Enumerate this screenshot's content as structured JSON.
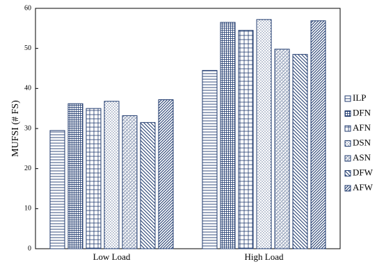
{
  "chart_data": {
    "type": "bar",
    "title": "",
    "xlabel": "",
    "ylabel": "MUFSI (# FS)",
    "ylim": [
      0,
      60
    ],
    "yticks": [
      0,
      10,
      20,
      30,
      40,
      50,
      60
    ],
    "grid": false,
    "legend_position": "right",
    "categories": [
      "Low Load",
      "High Load"
    ],
    "series": [
      {
        "name": "ILP",
        "pattern": "horizontal-lines",
        "values": [
          29.5,
          44.5
        ]
      },
      {
        "name": "DFN",
        "pattern": "dense-grid",
        "values": [
          36.2,
          56.5
        ]
      },
      {
        "name": "AFN",
        "pattern": "grid",
        "values": [
          35.0,
          54.5
        ]
      },
      {
        "name": "DSN",
        "pattern": "dots",
        "values": [
          36.8,
          57.2
        ]
      },
      {
        "name": "ASN",
        "pattern": "crosshatch-dots",
        "values": [
          33.2,
          49.8
        ]
      },
      {
        "name": "DFW",
        "pattern": "back-diagonal",
        "values": [
          31.5,
          48.5
        ]
      },
      {
        "name": "AFW",
        "pattern": "forward-diagonal",
        "values": [
          37.2,
          56.9
        ]
      }
    ],
    "colors": {
      "bar_stroke": "#1f3a6e",
      "pattern_line": "#1f3a6e",
      "axis": "#000000"
    }
  }
}
